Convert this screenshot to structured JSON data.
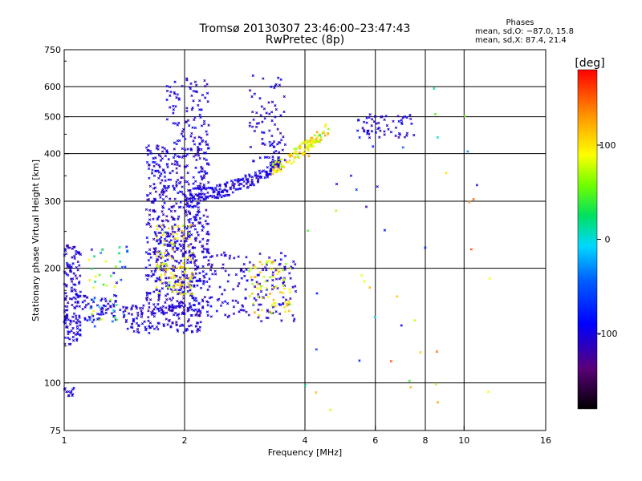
{
  "chart_data": {
    "type": "scatter",
    "title": "Tromsø 20130307 23:46:00–23:47:43",
    "subtitle": "RwPretec (8p)",
    "xlabel": "Frequency [MHz]",
    "ylabel": "Stationary phase Virtual Height [km]",
    "x_scale": "log",
    "y_scale": "log",
    "xlim": [
      1,
      16
    ],
    "ylim": [
      75,
      750
    ],
    "x_ticks": [
      1,
      2,
      4,
      6,
      8,
      10,
      16
    ],
    "y_ticks": [
      75,
      100,
      200,
      300,
      400,
      500,
      600,
      750
    ],
    "x_gridlines": [
      2,
      4,
      6,
      8,
      10
    ],
    "y_gridlines": [
      100,
      200,
      300,
      400,
      500,
      600
    ],
    "grid": true,
    "stats": {
      "header": "Phases",
      "line_o": "mean, sd,O: −87.0, 15.8",
      "line_x": "mean, sd,X:  87.4, 21.4"
    },
    "colorbar": {
      "label": "[deg]",
      "range": [
        -180,
        180
      ],
      "ticks": [
        "100",
        "0",
        "-100"
      ],
      "tick_values": [
        100,
        0,
        -100
      ]
    },
    "series": [
      {
        "x_range": [
          1.0,
          1.1
        ],
        "y_range": [
          125,
          230
        ],
        "count": 140,
        "phase": [
          -120,
          -90
        ]
      },
      {
        "x_range": [
          1.0,
          1.06
        ],
        "y_range": [
          92,
          97
        ],
        "count": 12,
        "phase": [
          -115,
          -95
        ]
      },
      {
        "x_range": [
          1.05,
          1.35
        ],
        "y_range": [
          145,
          170
        ],
        "count": 70,
        "phase": [
          -115,
          -85
        ]
      },
      {
        "x_range": [
          1.15,
          1.45
        ],
        "y_range": [
          140,
          230
        ],
        "count": 50,
        "phase": [
          -120,
          110
        ]
      },
      {
        "x_range": [
          1.4,
          2.2
        ],
        "y_range": [
          135,
          160
        ],
        "count": 140,
        "phase": [
          -120,
          -90
        ]
      },
      {
        "x_range": [
          1.6,
          2.3
        ],
        "y_range": [
          150,
          420
        ],
        "count": 700,
        "phase": [
          -125,
          -85
        ]
      },
      {
        "x_range": [
          1.7,
          2.1
        ],
        "y_range": [
          170,
          260
        ],
        "count": 100,
        "phase": [
          60,
          130
        ]
      },
      {
        "x_range": [
          1.8,
          2.3
        ],
        "y_range": [
          420,
          630
        ],
        "count": 90,
        "phase": [
          -120,
          -90
        ]
      },
      {
        "x_range": [
          2.0,
          3.5
        ],
        "y_range": [
          300,
          380
        ],
        "count": 200,
        "phase": [
          -115,
          -90
        ],
        "trace": [
          [
            2.0,
            310
          ],
          [
            2.5,
            320
          ],
          [
            3.0,
            345
          ],
          [
            3.5,
            380
          ]
        ]
      },
      {
        "x_range": [
          3.3,
          4.6
        ],
        "y_range": [
          360,
          480
        ],
        "count": 120,
        "phase": [
          60,
          130
        ],
        "trace": [
          [
            3.3,
            360
          ],
          [
            3.8,
            400
          ],
          [
            4.2,
            430
          ],
          [
            4.6,
            470
          ]
        ]
      },
      {
        "x_range": [
          2.3,
          3.8
        ],
        "y_range": [
          145,
          220
        ],
        "count": 160,
        "phase": [
          -120,
          -90
        ]
      },
      {
        "x_range": [
          2.9,
          3.7
        ],
        "y_range": [
          150,
          210
        ],
        "count": 70,
        "phase": [
          60,
          130
        ]
      },
      {
        "x_range": [
          2.9,
          3.6
        ],
        "y_range": [
          380,
          650
        ],
        "count": 80,
        "phase": [
          -120,
          -90
        ]
      },
      {
        "x_range": [
          5.4,
          7.5
        ],
        "y_range": [
          440,
          510
        ],
        "count": 60,
        "phase": [
          -120,
          -90
        ]
      },
      {
        "x_range": [
          4.0,
          12.0
        ],
        "y_range": [
          85,
          620
        ],
        "count": 45,
        "phase": [
          -120,
          160
        ]
      }
    ]
  }
}
